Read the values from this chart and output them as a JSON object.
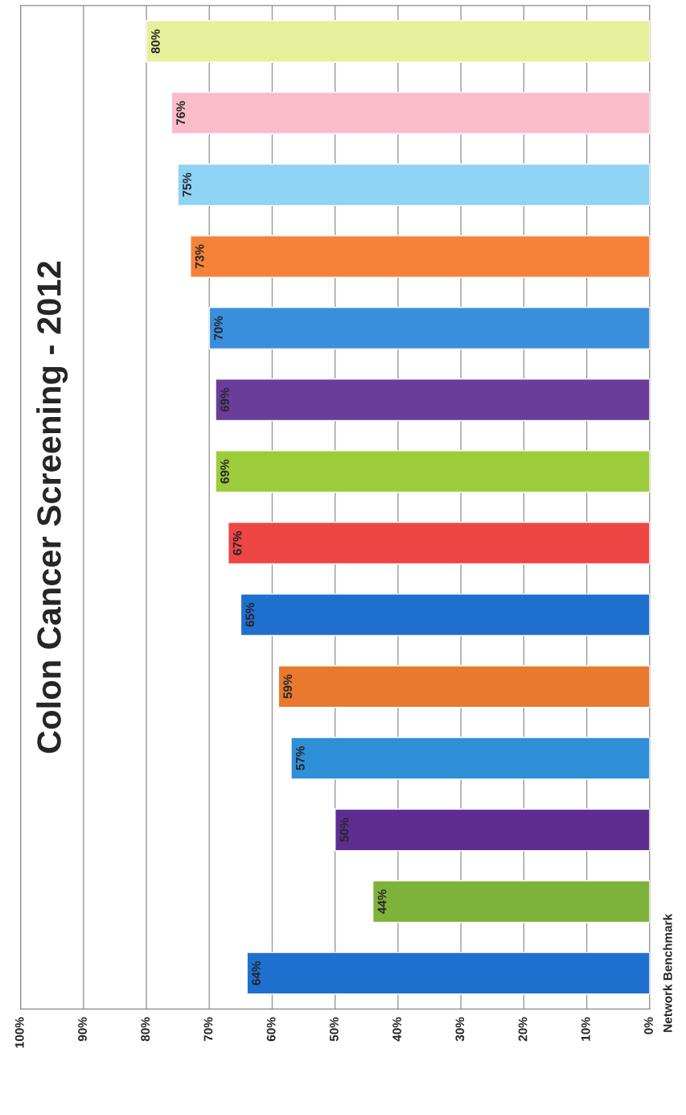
{
  "chart_data": {
    "type": "bar",
    "orientation": "horizontal",
    "title": "Colon Cancer Screening - 2012",
    "categories": [
      null,
      null,
      null,
      null,
      null,
      null,
      null,
      null,
      null,
      null,
      null,
      null,
      null,
      "Network Benchmark"
    ],
    "values": [
      80,
      76,
      75,
      73,
      70,
      69,
      69,
      67,
      65,
      59,
      57,
      50,
      44,
      64
    ],
    "colors": [
      "#e6f09a",
      "#f9bcc8",
      "#8fd3f5",
      "#f6823a",
      "#3a8fdc",
      "#6a3d9a",
      "#9ccc3c",
      "#ee4545",
      "#1f6fcf",
      "#e8792e",
      "#2e8fd8",
      "#5e2d91",
      "#7fb23a",
      "#1f6fcf"
    ],
    "xlim": [
      100,
      0
    ],
    "xticks": [
      {
        "value": 0,
        "label": "0%"
      },
      {
        "value": 10,
        "label": "10%"
      },
      {
        "value": 20,
        "label": "20%"
      },
      {
        "value": 30,
        "label": "30%"
      },
      {
        "value": 40,
        "label": "40%"
      },
      {
        "value": 50,
        "label": "50%"
      },
      {
        "value": 60,
        "label": "60%"
      },
      {
        "value": 70,
        "label": "70%"
      },
      {
        "value": 80,
        "label": "80%"
      },
      {
        "value": 90,
        "label": "90%"
      },
      {
        "value": 100,
        "label": "100%"
      }
    ],
    "value_labels": [
      "80%",
      "76%",
      "75%",
      "73%",
      "70%",
      "69%",
      "69%",
      "67%",
      "65%",
      "59%",
      "57%",
      "50%",
      "44%",
      "64%"
    ],
    "grid": "x"
  }
}
